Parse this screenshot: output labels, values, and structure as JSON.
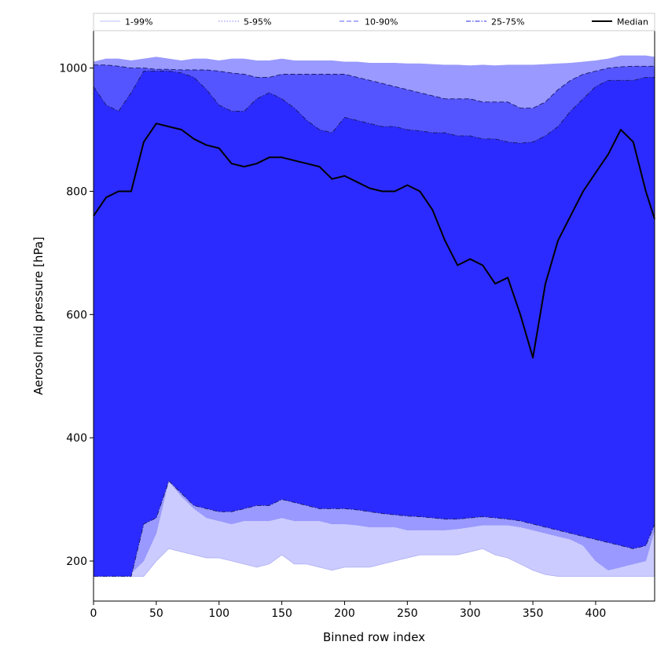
{
  "chart_data": {
    "type": "area",
    "title": "",
    "xlabel": "Binned row index",
    "ylabel": "Aerosol mid pressure [hPa]",
    "xlim": [
      0,
      447
    ],
    "ylim": [
      135,
      1062
    ],
    "x_ticks": [
      0,
      50,
      100,
      150,
      200,
      250,
      300,
      350,
      400
    ],
    "y_ticks": [
      200,
      400,
      600,
      800,
      1000
    ],
    "grid": false,
    "legend_position": "top, above plot",
    "x": [
      0,
      10,
      20,
      30,
      40,
      50,
      60,
      70,
      80,
      90,
      100,
      110,
      120,
      130,
      140,
      150,
      160,
      170,
      180,
      190,
      200,
      210,
      220,
      230,
      240,
      250,
      260,
      270,
      280,
      290,
      300,
      310,
      320,
      330,
      340,
      350,
      360,
      370,
      380,
      390,
      400,
      410,
      420,
      430,
      440,
      447
    ],
    "bands": [
      {
        "name": "1-99%",
        "color": "#cbcbff",
        "line_style": "solid",
        "lower": [
          175,
          175,
          175,
          175,
          175,
          200,
          220,
          215,
          210,
          205,
          205,
          200,
          195,
          190,
          195,
          210,
          195,
          195,
          190,
          185,
          190,
          190,
          190,
          195,
          200,
          205,
          210,
          210,
          210,
          210,
          215,
          220,
          210,
          205,
          195,
          185,
          178,
          175,
          175,
          175,
          175,
          175,
          175,
          175,
          175,
          175
        ],
        "upper": [
          1010,
          1015,
          1015,
          1012,
          1015,
          1018,
          1015,
          1012,
          1015,
          1015,
          1012,
          1015,
          1015,
          1012,
          1012,
          1015,
          1012,
          1012,
          1012,
          1012,
          1010,
          1010,
          1008,
          1008,
          1008,
          1007,
          1007,
          1006,
          1005,
          1005,
          1004,
          1005,
          1004,
          1005,
          1005,
          1005,
          1006,
          1007,
          1008,
          1010,
          1012,
          1015,
          1020,
          1020,
          1020,
          1018
        ]
      },
      {
        "name": "5-95%",
        "color": "#9999ff",
        "line_style": "dotted",
        "lower": [
          240,
          225,
          190,
          180,
          200,
          245,
          330,
          305,
          285,
          270,
          265,
          260,
          265,
          265,
          265,
          270,
          265,
          265,
          265,
          260,
          260,
          258,
          255,
          255,
          255,
          250,
          250,
          250,
          250,
          252,
          255,
          258,
          258,
          258,
          255,
          250,
          245,
          240,
          235,
          225,
          200,
          185,
          190,
          195,
          200,
          250
        ]
      },
      {
        "name": "10-90%",
        "color": "#5555ff",
        "line_style": "dashed",
        "lower": [
          500,
          470,
          400,
          400,
          600,
          770,
          775,
          750,
          720,
          760,
          650,
          590,
          600,
          580,
          620,
          640,
          600,
          560,
          540,
          500,
          550,
          450,
          420,
          400,
          390,
          370,
          360,
          350,
          345,
          340,
          360,
          360,
          345,
          335,
          335,
          330,
          330,
          320,
          330,
          380,
          640,
          740,
          700,
          560,
          430,
          410
        ],
        "upper": [
          1005,
          1005,
          1003,
          1000,
          1000,
          998,
          998,
          997,
          997,
          997,
          995,
          992,
          990,
          985,
          985,
          990,
          990,
          990,
          990,
          990,
          990,
          985,
          980,
          975,
          970,
          965,
          960,
          955,
          950,
          950,
          950,
          945,
          945,
          945,
          935,
          935,
          945,
          965,
          980,
          990,
          995,
          1000,
          1002,
          1003,
          1003,
          1003
        ]
      },
      {
        "name": "25-75%",
        "color": "#2b2bff",
        "line_style": "dashdot",
        "lower": [
          175,
          175,
          175,
          175,
          260,
          270,
          330,
          310,
          290,
          285,
          280,
          280,
          285,
          290,
          290,
          300,
          295,
          290,
          285,
          285,
          285,
          283,
          280,
          277,
          275,
          273,
          272,
          270,
          268,
          268,
          270,
          272,
          270,
          268,
          265,
          260,
          255,
          250,
          245,
          240,
          235,
          230,
          225,
          220,
          225,
          260
        ],
        "upper": [
          970,
          940,
          930,
          960,
          995,
          995,
          995,
          992,
          985,
          965,
          940,
          930,
          930,
          950,
          960,
          950,
          935,
          915,
          900,
          895,
          920,
          915,
          910,
          905,
          905,
          900,
          898,
          895,
          895,
          890,
          890,
          885,
          885,
          880,
          878,
          880,
          890,
          905,
          930,
          950,
          970,
          980,
          980,
          980,
          985,
          985
        ]
      }
    ],
    "median": {
      "name": "Median",
      "color": "#000000",
      "line_style": "solid",
      "values": [
        760,
        790,
        800,
        800,
        880,
        910,
        905,
        900,
        885,
        875,
        870,
        845,
        840,
        845,
        855,
        855,
        850,
        845,
        840,
        820,
        825,
        815,
        805,
        800,
        800,
        810,
        800,
        770,
        720,
        680,
        690,
        680,
        650,
        660,
        600,
        530,
        650,
        720,
        760,
        800,
        830,
        860,
        900,
        880,
        800,
        755
      ]
    }
  }
}
